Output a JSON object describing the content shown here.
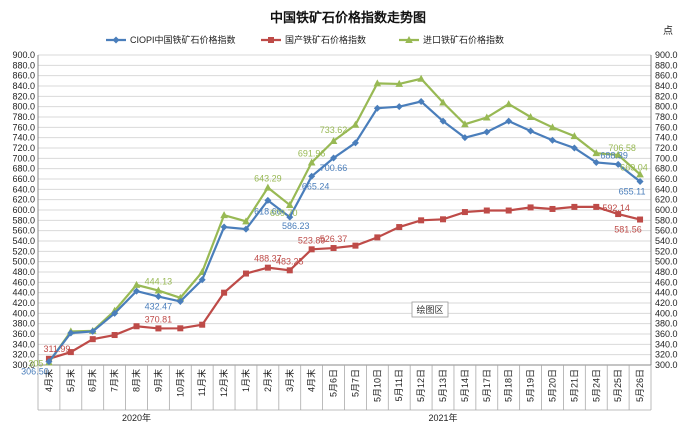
{
  "chart_data": {
    "type": "line",
    "title": "中国铁矿石价格指数走势图",
    "unit": "点",
    "ylim": [
      300,
      900
    ],
    "y_ticks": [
      "300.0",
      "320.0",
      "340.0",
      "360.0",
      "380.0",
      "400.0",
      "420.0",
      "440.0",
      "460.0",
      "480.0",
      "500.0",
      "520.0",
      "540.0",
      "560.0",
      "580.0",
      "600.0",
      "620.0",
      "640.0",
      "660.0",
      "680.0",
      "700.0",
      "720.0",
      "740.0",
      "760.0",
      "780.0",
      "800.0",
      "820.0",
      "840.0",
      "860.0",
      "880.0",
      "900.0"
    ],
    "grid": true,
    "legend_position": "top",
    "categories": [
      "4月末",
      "5月末",
      "6月末",
      "7月末",
      "8月末",
      "9月末",
      "10月末",
      "11月末",
      "12月末",
      "1月末",
      "2月末",
      "3月末",
      "4月末",
      "5月6日",
      "5月7日",
      "5月10日",
      "5月11日",
      "5月12日",
      "5月13日",
      "5月14日",
      "5月17日",
      "5月18日",
      "5月19日",
      "5月20日",
      "5月21日",
      "5月24日",
      "5月25日",
      "5月26日"
    ],
    "year_groups": [
      {
        "label": "2020年",
        "count": 9
      },
      {
        "label": "2021年",
        "count": 19
      }
    ],
    "series": [
      {
        "name": "CIOPI中国铁矿石价格指数",
        "color": "#4a7ebb",
        "marker": "diamond",
        "values": [
          306.5,
          362,
          365,
          400,
          443,
          432.47,
          423,
          465,
          567,
          563,
          618.66,
          586.23,
          665.24,
          700.66,
          730,
          797,
          800,
          810,
          772,
          740,
          751,
          772,
          753,
          735,
          720,
          692,
          688.39,
          655.11
        ]
      },
      {
        "name": "国产铁矿石价格指数",
        "color": "#be4b48",
        "marker": "square",
        "values": [
          311.99,
          325,
          350,
          358,
          375,
          370.81,
          371,
          378,
          440,
          477,
          488.37,
          483.25,
          523.89,
          526.37,
          531,
          547,
          567,
          580,
          582,
          596,
          599,
          599,
          605,
          602,
          606,
          606,
          592.14,
          581.56
        ]
      },
      {
        "name": "进口铁矿石价格指数",
        "color": "#98b954",
        "marker": "triangle",
        "values": [
          305,
          365,
          366,
          405,
          455,
          444.13,
          430,
          480,
          590,
          578,
          643.29,
          609.7,
          691.96,
          733.62,
          765,
          845,
          844,
          854,
          808,
          766,
          779,
          805,
          780,
          760,
          743,
          710,
          706.58,
          669.04
        ]
      }
    ],
    "data_labels": [
      {
        "series": 0,
        "index": 0,
        "text": "306.50"
      },
      {
        "series": 1,
        "index": 0,
        "text": "311.99"
      },
      {
        "series": 2,
        "index": 0,
        "text": "305"
      },
      {
        "series": 0,
        "index": 5,
        "text": "432.47"
      },
      {
        "series": 1,
        "index": 5,
        "text": "370.81"
      },
      {
        "series": 2,
        "index": 5,
        "text": "444.13"
      },
      {
        "series": 0,
        "index": 10,
        "text": "618.66"
      },
      {
        "series": 1,
        "index": 10,
        "text": "488.37"
      },
      {
        "series": 2,
        "index": 10,
        "text": "643.29"
      },
      {
        "series": 0,
        "index": 11,
        "text": "586.23"
      },
      {
        "series": 1,
        "index": 11,
        "text": "483.25"
      },
      {
        "series": 2,
        "index": 11,
        "text": "609.70"
      },
      {
        "series": 0,
        "index": 12,
        "text": "665.24"
      },
      {
        "series": 1,
        "index": 12,
        "text": "523.89"
      },
      {
        "series": 2,
        "index": 12,
        "text": "691.96"
      },
      {
        "series": 0,
        "index": 13,
        "text": "700.66"
      },
      {
        "series": 1,
        "index": 13,
        "text": "526.37"
      },
      {
        "series": 2,
        "index": 13,
        "text": "733.62"
      },
      {
        "series": 0,
        "index": 26,
        "text": "688.39"
      },
      {
        "series": 1,
        "index": 26,
        "text": "592.14"
      },
      {
        "series": 2,
        "index": 26,
        "text": "706.58"
      },
      {
        "series": 0,
        "index": 27,
        "text": "655.11"
      },
      {
        "series": 1,
        "index": 27,
        "text": "581.56"
      },
      {
        "series": 2,
        "index": 27,
        "text": "669.04"
      }
    ],
    "plot_area_button": "绘图区"
  }
}
